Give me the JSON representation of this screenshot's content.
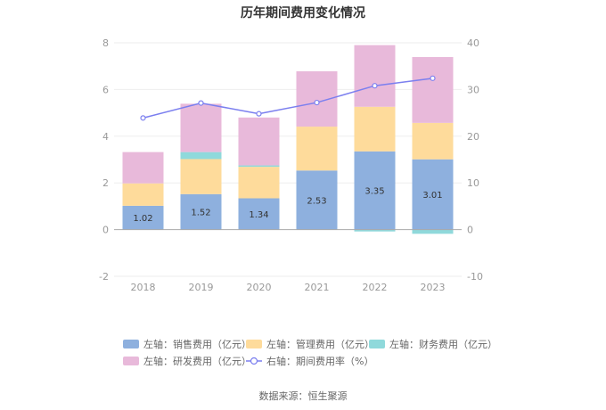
{
  "title": "历年期间费用变化情况",
  "source": "数据来源：恒生聚源",
  "chart_data": {
    "type": "bar",
    "stacked": true,
    "categories": [
      "2018",
      "2019",
      "2020",
      "2021",
      "2022",
      "2023"
    ],
    "series": [
      {
        "name": "左轴：销售费用（亿元）",
        "axis": "left",
        "color": "#8eb0de",
        "values": [
          1.02,
          1.52,
          1.34,
          2.53,
          3.35,
          3.01
        ],
        "show_labels": true
      },
      {
        "name": "左轴：管理费用（亿元）",
        "axis": "left",
        "color": "#fedb9b",
        "values": [
          0.96,
          1.5,
          1.35,
          1.88,
          1.91,
          1.56
        ],
        "show_labels": false
      },
      {
        "name": "左轴：财务费用（亿元）",
        "axis": "left",
        "color": "#8fd9db",
        "values": [
          0.0,
          0.3,
          0.06,
          0.0,
          -0.08,
          -0.18
        ],
        "show_labels": false
      },
      {
        "name": "左轴：研发费用（亿元）",
        "axis": "left",
        "color": "#e8b9da",
        "values": [
          1.34,
          2.07,
          2.05,
          2.37,
          2.64,
          2.82
        ],
        "show_labels": false
      }
    ],
    "line_series": {
      "name": "右轴：期间费用率（%）",
      "axis": "right",
      "color": "#7b7fef",
      "values": [
        23.9,
        27.1,
        24.8,
        27.2,
        30.8,
        32.4
      ]
    },
    "y_left": {
      "min": -2,
      "max": 8,
      "ticks": [
        -2,
        0,
        2,
        4,
        6,
        8
      ]
    },
    "y_right": {
      "min": -10,
      "max": 40,
      "ticks": [
        -10,
        0,
        10,
        20,
        30,
        40
      ]
    },
    "grid": true,
    "legend_position": "bottom"
  }
}
